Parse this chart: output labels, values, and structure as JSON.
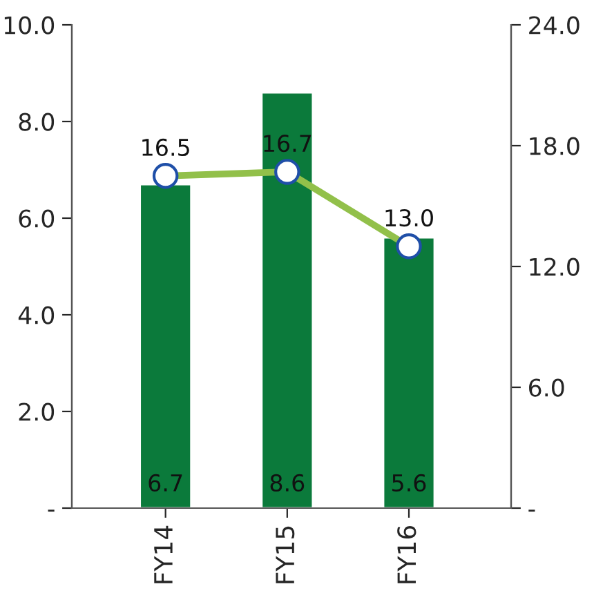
{
  "chart_data": {
    "type": "bar",
    "categories": [
      "FY14",
      "FY15",
      "FY16"
    ],
    "series": [
      {
        "color": "#0b7a3b",
        "values": [
          6.7,
          8.6,
          5.6
        ],
        "value_labels": [
          "6.7",
          "8.6",
          "5.6"
        ]
      },
      {
        "type": "line",
        "axis": "y2",
        "color": "#92c04a",
        "values": [
          16.5,
          16.7,
          13.0
        ],
        "value_labels": [
          "16.5",
          "16.7",
          "13.0"
        ],
        "marker": "circle"
      }
    ],
    "ylim": [
      0,
      10
    ],
    "yticks": [
      {
        "value": 0,
        "label": "-"
      },
      {
        "value": 2,
        "label": "2.0"
      },
      {
        "value": 4,
        "label": "4.0"
      },
      {
        "value": 6,
        "label": "6.0"
      },
      {
        "value": 8,
        "label": "8.0"
      },
      {
        "value": 10,
        "label": "10.0"
      }
    ],
    "y2lim": [
      0,
      24
    ],
    "y2ticks": [
      {
        "value": 0,
        "label": "-"
      },
      {
        "value": 6,
        "label": "6.0"
      },
      {
        "value": 12,
        "label": "12.0"
      },
      {
        "value": 18,
        "label": "18.0"
      },
      {
        "value": 24,
        "label": "24.0"
      }
    ],
    "grid": false
  }
}
